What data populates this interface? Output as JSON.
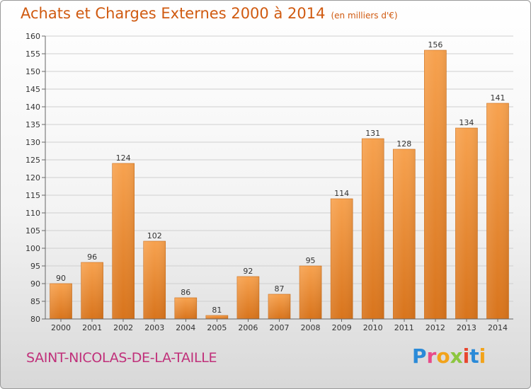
{
  "header": {
    "title": "Achats et Charges Externes 2000 à 2014",
    "unit": "(en milliers d'€)"
  },
  "footer": {
    "commune": "SAINT-NICOLAS-DE-LA-TAILLE",
    "logo": "Proxiti"
  },
  "colors": {
    "bar_light": "#f7a24f",
    "bar_dark": "#d8741c",
    "title": "#d05a10",
    "commune": "#c0307a",
    "grid": "#cfcfcf"
  },
  "chart_data": {
    "type": "bar",
    "title": "Achats et Charges Externes 2000 à 2014",
    "subtitle": "(en milliers d'€)",
    "xlabel": "",
    "ylabel": "",
    "categories": [
      "2000",
      "2001",
      "2002",
      "2003",
      "2004",
      "2005",
      "2006",
      "2007",
      "2008",
      "2009",
      "2010",
      "2011",
      "2012",
      "2013",
      "2014"
    ],
    "values": [
      90,
      96,
      124,
      102,
      86,
      81,
      92,
      87,
      95,
      114,
      131,
      128,
      156,
      134,
      141
    ],
    "ylim": [
      80,
      160
    ],
    "yticks": [
      80,
      85,
      90,
      95,
      100,
      105,
      110,
      115,
      120,
      125,
      130,
      135,
      140,
      145,
      150,
      155,
      160
    ],
    "grid": true,
    "legend": "none"
  }
}
